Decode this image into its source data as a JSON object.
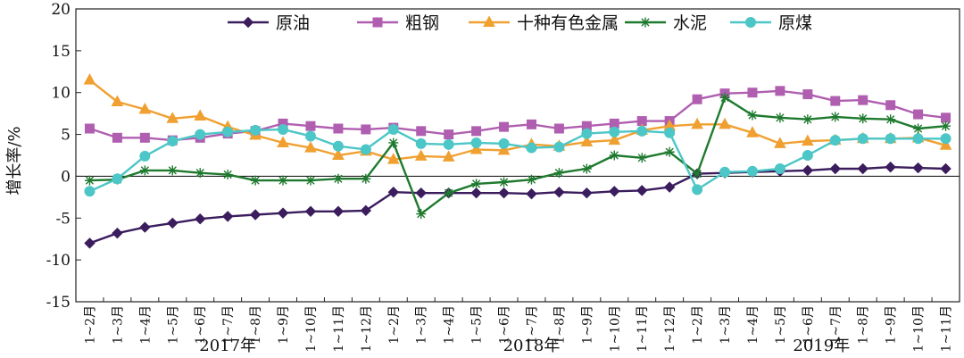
{
  "chart_data": {
    "type": "line",
    "ylabel": "增长率/%",
    "ylim": [
      -15,
      20
    ],
    "yticks": [
      -15,
      -10,
      -5,
      0,
      5,
      10,
      15,
      20
    ],
    "x": [
      "1~2月",
      "1~3月",
      "1~4月",
      "1~5月",
      "1~6月",
      "1~7月",
      "1~8月",
      "1~9月",
      "1~10月",
      "1~11月",
      "1~12月",
      "1~2月",
      "1~3月",
      "1~4月",
      "1~5月",
      "1~6月",
      "1~7月",
      "1~8月",
      "1~9月",
      "1~10月",
      "1~11月",
      "1~12月",
      "1~2月",
      "1~3月",
      "1~4月",
      "1~5月",
      "1~6月",
      "1~7月",
      "1~8月",
      "1~9月",
      "1~10月",
      "1~11月"
    ],
    "year_groups": [
      {
        "label": "2017年",
        "start": 0,
        "end": 10
      },
      {
        "label": "2018年",
        "start": 11,
        "end": 21
      },
      {
        "label": "2019年",
        "start": 22,
        "end": 31
      }
    ],
    "legend_position": "top",
    "series": [
      {
        "name": "原油",
        "color": "#3b1d5e",
        "marker": "diamond",
        "values": [
          -8.0,
          -6.8,
          -6.1,
          -5.6,
          -5.1,
          -4.8,
          -4.6,
          -4.4,
          -4.2,
          -4.2,
          -4.1,
          -1.9,
          -2.0,
          -2.0,
          -2.0,
          -2.0,
          -2.1,
          -1.9,
          -2.0,
          -1.8,
          -1.7,
          -1.3,
          0.3,
          0.4,
          0.5,
          0.6,
          0.7,
          0.9,
          0.9,
          1.1,
          1.0,
          0.9
        ]
      },
      {
        "name": "粗钢",
        "color": "#b05fb0",
        "marker": "square",
        "values": [
          5.7,
          4.6,
          4.6,
          4.3,
          4.6,
          5.1,
          5.4,
          6.3,
          6.0,
          5.7,
          5.6,
          5.8,
          5.4,
          5.0,
          5.4,
          5.9,
          6.2,
          5.7,
          6.0,
          6.3,
          6.6,
          6.6,
          9.2,
          9.9,
          10.0,
          10.2,
          9.8,
          9.0,
          9.1,
          8.5,
          7.4,
          7.0
        ]
      },
      {
        "name": "十种有色金属",
        "color": "#f0a030",
        "marker": "triangle",
        "values": [
          11.5,
          8.9,
          8.0,
          6.9,
          7.2,
          5.9,
          4.9,
          4.0,
          3.4,
          2.5,
          3.0,
          2.0,
          2.4,
          2.3,
          3.2,
          3.1,
          3.8,
          3.6,
          4.1,
          4.3,
          5.5,
          6.0,
          6.2,
          6.2,
          5.2,
          3.9,
          4.2,
          4.3,
          4.5,
          4.5,
          4.6,
          3.7
        ]
      },
      {
        "name": "水泥",
        "color": "#1f7a2f",
        "marker": "star",
        "values": [
          -0.5,
          -0.4,
          0.7,
          0.7,
          0.4,
          0.2,
          -0.5,
          -0.5,
          -0.5,
          -0.3,
          -0.3,
          4.0,
          -4.5,
          -2.0,
          -0.9,
          -0.7,
          -0.4,
          0.4,
          0.9,
          2.5,
          2.2,
          2.9,
          0.3,
          9.4,
          7.3,
          7.0,
          6.8,
          7.1,
          6.9,
          6.8,
          5.7,
          6.0
        ]
      },
      {
        "name": "原煤",
        "color": "#4cc6c6",
        "marker": "circle",
        "values": [
          -1.8,
          -0.3,
          2.4,
          4.2,
          5.0,
          5.3,
          5.5,
          5.6,
          4.8,
          3.6,
          3.2,
          5.6,
          3.9,
          3.8,
          4.0,
          3.9,
          3.4,
          3.5,
          5.1,
          5.3,
          5.4,
          5.2,
          -1.6,
          0.5,
          0.6,
          0.9,
          2.5,
          4.3,
          4.5,
          4.5,
          4.5,
          4.5
        ]
      }
    ]
  }
}
